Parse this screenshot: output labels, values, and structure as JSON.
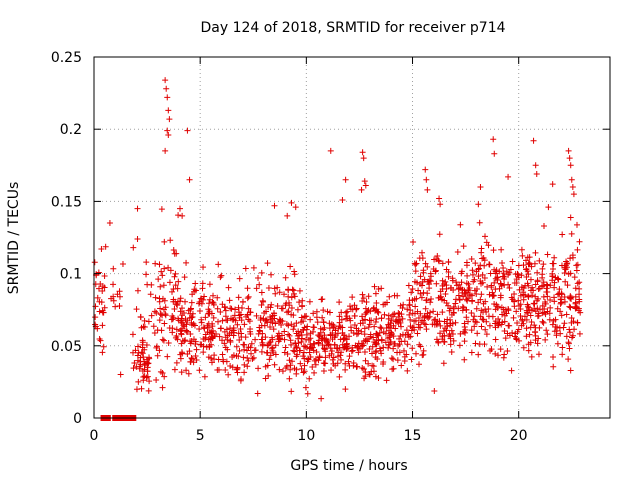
{
  "chart_data": {
    "type": "scatter",
    "title": "Day 124 of 2018, SRMTID for receiver p714",
    "xlabel": "GPS time / hours",
    "ylabel": "SRMTID / TECUs",
    "xlim": [
      0,
      24.3
    ],
    "ylim": [
      0,
      0.25
    ],
    "xticks": [
      0,
      5,
      10,
      15,
      20
    ],
    "xtick_labels": [
      "0",
      "5",
      "10",
      "15",
      "20"
    ],
    "yticks": [
      0,
      0.05,
      0.1,
      0.15,
      0.2,
      0.25
    ],
    "ytick_labels": [
      "0",
      "0.05",
      "0.1",
      "0.15",
      "0.2",
      "0.25"
    ],
    "grid": true,
    "marker": "+",
    "color": "#e00000",
    "baseline_points": {
      "description_value": 0,
      "x": [
        0.45,
        0.55,
        0.65,
        1.0,
        1.1,
        1.2,
        1.45,
        1.55,
        1.65,
        1.75,
        1.85
      ],
      "y": [
        0,
        0,
        0,
        0,
        0,
        0,
        0,
        0,
        0,
        0,
        0
      ]
    },
    "segments": [
      {
        "x_start": 0.0,
        "x_end": 0.55,
        "median": 0.07,
        "spread": 0.025,
        "count": 30
      },
      {
        "x_start": 0.8,
        "x_end": 1.4,
        "median": 0.075,
        "spread": 0.03,
        "count": 12
      },
      {
        "x_start": 1.8,
        "x_end": 2.6,
        "median": 0.038,
        "spread": 0.012,
        "count": 40
      },
      {
        "x_start": 2.0,
        "x_end": 3.0,
        "median": 0.065,
        "spread": 0.025,
        "count": 35
      },
      {
        "x_start": 3.0,
        "x_end": 4.0,
        "median": 0.075,
        "spread": 0.035,
        "count": 70
      },
      {
        "x_start": 4.0,
        "x_end": 7.5,
        "median": 0.062,
        "spread": 0.022,
        "count": 260
      },
      {
        "x_start": 7.5,
        "x_end": 9.5,
        "median": 0.065,
        "spread": 0.025,
        "count": 150
      },
      {
        "x_start": 9.5,
        "x_end": 12.0,
        "median": 0.055,
        "spread": 0.02,
        "count": 200
      },
      {
        "x_start": 12.0,
        "x_end": 15.0,
        "median": 0.06,
        "spread": 0.02,
        "count": 230
      },
      {
        "x_start": 15.0,
        "x_end": 17.5,
        "median": 0.078,
        "spread": 0.025,
        "count": 200
      },
      {
        "x_start": 17.5,
        "x_end": 20.0,
        "median": 0.082,
        "spread": 0.025,
        "count": 190
      },
      {
        "x_start": 20.0,
        "x_end": 22.0,
        "median": 0.082,
        "spread": 0.025,
        "count": 170
      },
      {
        "x_start": 22.0,
        "x_end": 22.9,
        "median": 0.085,
        "spread": 0.03,
        "count": 80
      }
    ],
    "outliers": {
      "x": [
        3.35,
        3.4,
        3.45,
        3.5,
        3.55,
        3.45,
        3.5,
        3.35,
        4.4,
        4.5,
        2.05,
        0.75,
        8.5,
        9.1,
        9.3,
        9.5,
        11.15,
        11.7,
        11.85,
        12.65,
        12.7,
        12.75,
        12.8,
        15.6,
        15.65,
        15.7,
        16.25,
        16.3,
        18.1,
        18.2,
        18.8,
        18.85,
        19.5,
        20.7,
        20.8,
        20.85,
        21.4,
        21.6,
        22.35,
        22.4,
        22.45,
        22.5,
        22.55,
        22.6,
        0.35,
        2.05,
        1.85,
        4.05,
        4.15,
        12.6
      ],
      "y": [
        0.234,
        0.228,
        0.222,
        0.213,
        0.207,
        0.199,
        0.196,
        0.185,
        0.199,
        0.165,
        0.145,
        0.135,
        0.147,
        0.14,
        0.149,
        0.146,
        0.185,
        0.151,
        0.165,
        0.184,
        0.18,
        0.164,
        0.161,
        0.172,
        0.165,
        0.158,
        0.152,
        0.148,
        0.148,
        0.16,
        0.193,
        0.183,
        0.167,
        0.192,
        0.175,
        0.169,
        0.146,
        0.162,
        0.185,
        0.18,
        0.175,
        0.165,
        0.16,
        0.155,
        0.117,
        0.124,
        0.118,
        0.145,
        0.14,
        0.158
      ]
    }
  }
}
